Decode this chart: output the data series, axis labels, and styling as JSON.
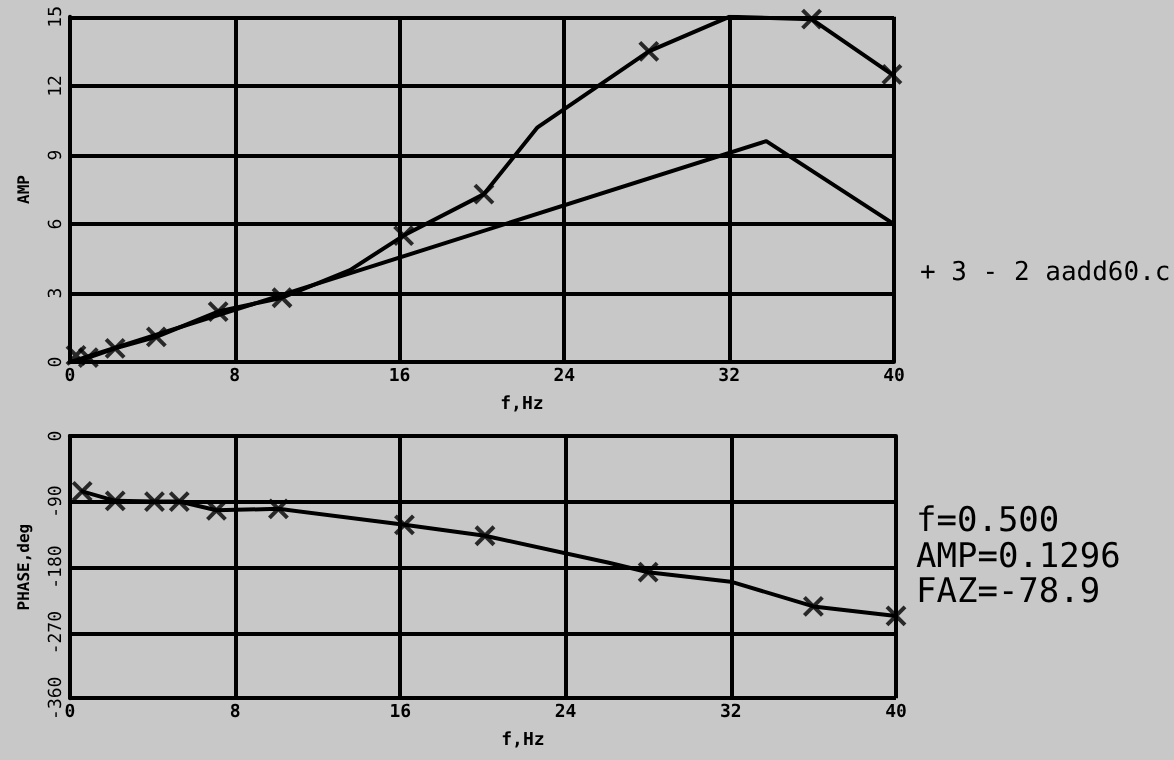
{
  "chart_data": [
    {
      "type": "line",
      "ylabel": "AMP",
      "xlabel": "f,Hz",
      "xlim": [
        0,
        40
      ],
      "xticks": [
        0,
        8,
        16,
        24,
        32,
        40
      ],
      "ylim": [
        0,
        15
      ],
      "yticks": [
        0,
        3,
        6,
        9,
        12,
        15
      ],
      "grid": true,
      "annotations": [
        "+ 3 - 2 aadd60.c"
      ],
      "series": [
        {
          "type": "line",
          "color": "#000000",
          "marker": "none",
          "x": [
            0,
            0.9,
            2.2,
            4.2,
            7.2,
            10.3,
            13.6,
            16.2,
            20.1,
            22.7,
            28.1,
            32,
            36,
            39.9
          ],
          "values": [
            0,
            0.2,
            0.6,
            1.1,
            2.2,
            2.8,
            4.0,
            5.5,
            7.3,
            10.2,
            13.5,
            15.0,
            14.9,
            12.5
          ]
        },
        {
          "type": "scatter",
          "color": "#000000",
          "marker": "cross",
          "x": [
            0.3,
            0.9,
            2.2,
            4.2,
            7.2,
            10.3,
            16.2,
            20.1,
            28.1,
            36,
            39.9
          ],
          "values": [
            0.3,
            0.2,
            0.6,
            1.1,
            2.2,
            2.8,
            5.5,
            7.3,
            13.5,
            14.9,
            12.5
          ]
        },
        {
          "type": "line",
          "color": "#000000",
          "marker": "none",
          "x": [
            0,
            33.8,
            40
          ],
          "values": [
            0,
            9.6,
            6.0
          ]
        }
      ]
    },
    {
      "type": "line",
      "ylabel": "PHASE,deg",
      "xlabel": "f,Hz",
      "xlim": [
        0,
        40
      ],
      "xticks": [
        0,
        8,
        16,
        24,
        32,
        40
      ],
      "ylim": [
        -360,
        0
      ],
      "yticks": [
        0,
        -90,
        -180,
        -270,
        -360
      ],
      "grid": true,
      "annotations": [
        "f=0.500",
        "AMP=0.1296",
        "FAZ=-78.9"
      ],
      "series": [
        {
          "type": "line",
          "color": "#000000",
          "marker": "none",
          "x": [
            0.6,
            2.2,
            4.1,
            5.3,
            7.1,
            10.1,
            16.2,
            20.1,
            26.1,
            28,
            32,
            36,
            40
          ],
          "values": [
            -76,
            -89,
            -90,
            -90,
            -102,
            -100,
            -122,
            -137,
            -174,
            -187,
            -200,
            -234,
            -247
          ]
        },
        {
          "type": "scatter",
          "color": "#000000",
          "marker": "cross",
          "x": [
            0.6,
            2.2,
            4.1,
            5.3,
            7.1,
            10.1,
            16.2,
            20.1,
            28,
            36,
            40
          ],
          "values": [
            -76,
            -89,
            -90,
            -90,
            -102,
            -100,
            -122,
            -137,
            -187,
            -234,
            -247
          ]
        }
      ]
    }
  ]
}
